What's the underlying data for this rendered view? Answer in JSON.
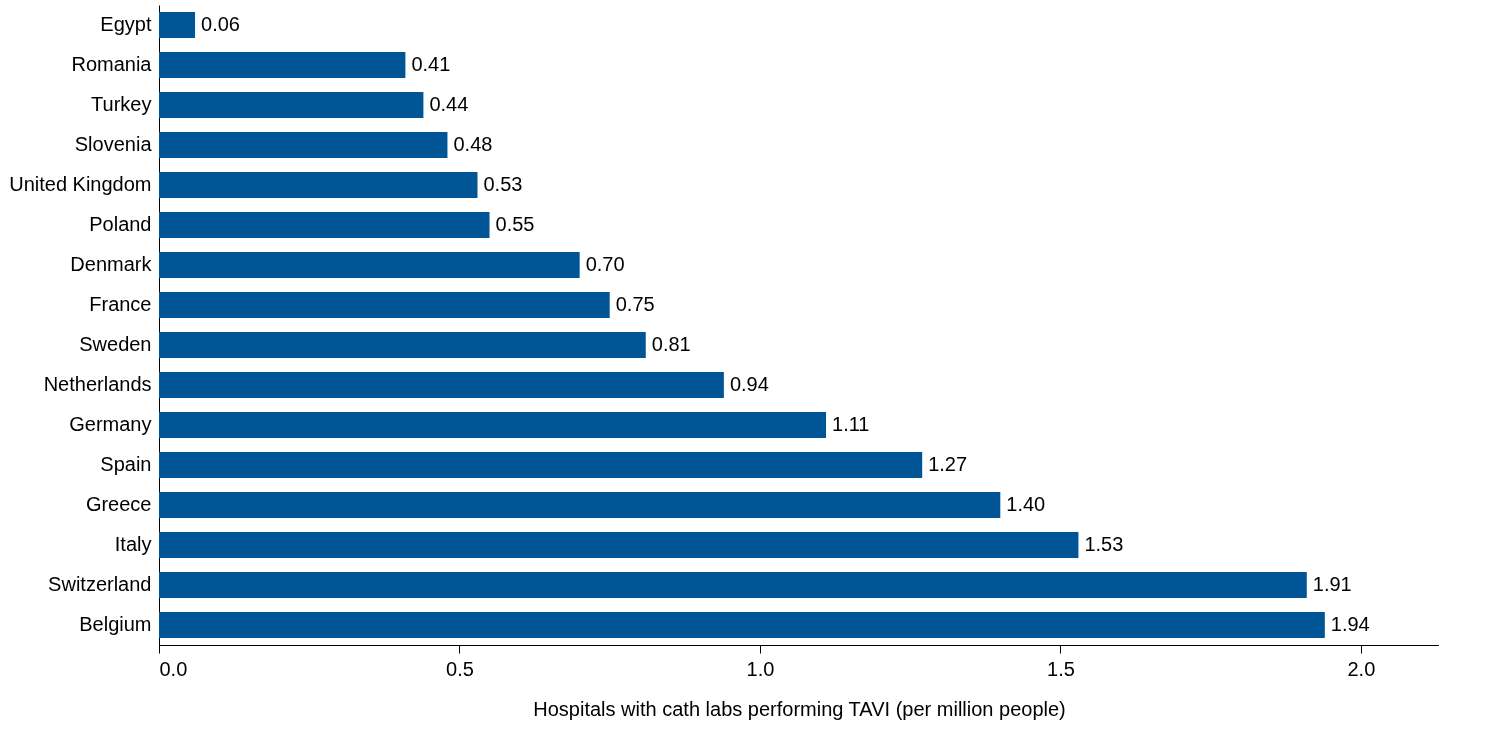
{
  "chart_data": {
    "type": "bar",
    "orientation": "horizontal",
    "xlabel": "Hospitals with cath labs performing TAVI (per million people)",
    "categories": [
      "Egypt",
      "Romania",
      "Turkey",
      "Slovenia",
      "United Kingdom",
      "Poland",
      "Denmark",
      "France",
      "Sweden",
      "Netherlands",
      "Germany",
      "Spain",
      "Greece",
      "Italy",
      "Switzerland",
      "Belgium"
    ],
    "values": [
      0.06,
      0.41,
      0.44,
      0.48,
      0.53,
      0.55,
      0.7,
      0.75,
      0.81,
      0.94,
      1.11,
      1.27,
      1.4,
      1.53,
      1.91,
      1.94
    ],
    "value_labels": [
      "0.06",
      "0.41",
      "0.44",
      "0.48",
      "0.53",
      "0.55",
      "0.70",
      "0.75",
      "0.81",
      "0.94",
      "1.11",
      "1.27",
      "1.40",
      "1.53",
      "1.91",
      "1.94"
    ],
    "color": "#005596",
    "xlim": [
      0,
      2.13
    ],
    "xticks": [
      {
        "value": 0,
        "label": "0.0"
      },
      {
        "value": 0.5,
        "label": "0.5"
      },
      {
        "value": 1,
        "label": "1.0"
      },
      {
        "value": 1.5,
        "label": "1.5"
      },
      {
        "value": 2,
        "label": "2.0"
      }
    ],
    "grid": false
  }
}
